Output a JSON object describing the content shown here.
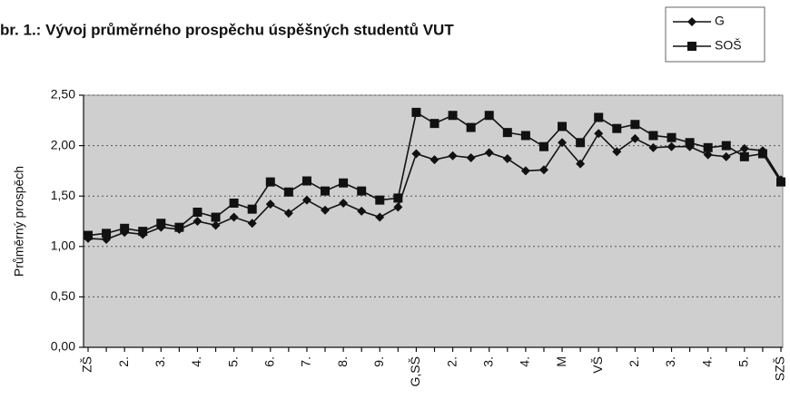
{
  "chart_data": {
    "type": "line",
    "title": "br. 1.: Vývoj průměrného prospěchu úspěšných studentů VUT",
    "y_label": "Průměrný prospěch",
    "categories": [
      "ZŠ",
      null,
      "2.",
      null,
      "3.",
      null,
      "4.",
      null,
      "5.",
      null,
      "6.",
      null,
      "7.",
      null,
      "8.",
      null,
      "9.",
      null,
      "G,SŠ",
      null,
      "2.",
      null,
      "3.",
      null,
      "4.",
      null,
      "M",
      null,
      "VŠ",
      null,
      "2.",
      null,
      "3.",
      null,
      "4.",
      null,
      "5.",
      null,
      "SZŠ"
    ],
    "series": [
      {
        "name": "G",
        "color": "#111111",
        "marker": "diamond",
        "values": [
          1.08,
          1.07,
          1.14,
          1.12,
          1.19,
          1.17,
          1.25,
          1.21,
          1.29,
          1.23,
          1.42,
          1.33,
          1.46,
          1.36,
          1.43,
          1.35,
          1.29,
          1.39,
          1.92,
          1.86,
          1.9,
          1.88,
          1.93,
          1.87,
          1.75,
          1.76,
          2.03,
          1.82,
          2.12,
          1.94,
          2.07,
          1.98,
          1.99,
          1.99,
          1.91,
          1.89,
          1.97,
          1.95,
          1.66
        ]
      },
      {
        "name": "SOŠ",
        "color": "#111111",
        "marker": "square",
        "values": [
          1.11,
          1.13,
          1.18,
          1.15,
          1.23,
          1.19,
          1.34,
          1.29,
          1.43,
          1.37,
          1.64,
          1.54,
          1.65,
          1.55,
          1.63,
          1.55,
          1.46,
          1.48,
          2.33,
          2.22,
          2.3,
          2.18,
          2.3,
          2.13,
          2.1,
          1.99,
          2.19,
          2.03,
          2.28,
          2.17,
          2.21,
          2.1,
          2.08,
          2.03,
          1.98,
          2.0,
          1.89,
          1.92,
          1.64
        ]
      }
    ],
    "ylim": [
      0,
      2.5
    ],
    "yticks": [
      {
        "value": 0,
        "label": "0,00"
      },
      {
        "value": 0.5,
        "label": "0,50"
      },
      {
        "value": 1,
        "label": "1,00"
      },
      {
        "value": 1.5,
        "label": "1,50"
      },
      {
        "value": 2,
        "label": "2,00"
      },
      {
        "value": 2.5,
        "label": "2,50"
      }
    ],
    "grid": true,
    "legend": "top-right",
    "plot_background": "#cfcfcf"
  }
}
